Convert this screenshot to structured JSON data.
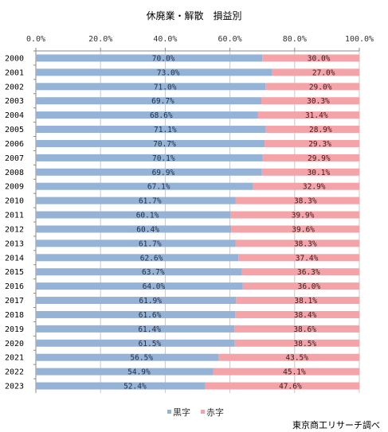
{
  "chart_data": {
    "type": "bar",
    "orientation": "horizontal",
    "stacked": "percent",
    "title": "休廃業・解散　損益別",
    "categories": [
      "2000",
      "2001",
      "2002",
      "2003",
      "2004",
      "2005",
      "2006",
      "2007",
      "2008",
      "2009",
      "2010",
      "2011",
      "2012",
      "2013",
      "2014",
      "2015",
      "2016",
      "2017",
      "2018",
      "2019",
      "2020",
      "2021",
      "2022",
      "2023"
    ],
    "series": [
      {
        "name": "黒字",
        "color": "#95b3d7",
        "values": [
          70.0,
          73.0,
          71.0,
          69.7,
          68.6,
          71.1,
          70.7,
          70.1,
          69.9,
          67.1,
          61.7,
          60.1,
          60.4,
          61.7,
          62.6,
          63.7,
          64.0,
          61.9,
          61.6,
          61.4,
          61.5,
          56.5,
          54.9,
          52.4
        ],
        "labels": [
          "70.0%",
          "73.0%",
          "71.0%",
          "69.7%",
          "68.6%",
          "71.1%",
          "70.7%",
          "70.1%",
          "69.9%",
          "67.1%",
          "61.7%",
          "60.1%",
          "60.4%",
          "61.7%",
          "62.6%",
          "63.7%",
          "64.0%",
          "61.9%",
          "61.6%",
          "61.4%",
          "61.5%",
          "56.5%",
          "54.9%",
          "52.4%"
        ]
      },
      {
        "name": "赤字",
        "color": "#f4a3a8",
        "values": [
          30.0,
          27.0,
          29.0,
          30.3,
          31.4,
          28.9,
          29.3,
          29.9,
          30.1,
          32.9,
          38.3,
          39.9,
          39.6,
          38.3,
          37.4,
          36.3,
          36.0,
          38.1,
          38.4,
          38.6,
          38.5,
          43.5,
          45.1,
          47.6
        ],
        "labels": [
          "30.0%",
          "27.0%",
          "29.0%",
          "30.3%",
          "31.4%",
          "28.9%",
          "29.3%",
          "29.9%",
          "30.1%",
          "32.9%",
          "38.3%",
          "39.9%",
          "39.6%",
          "38.3%",
          "37.4%",
          "36.3%",
          "36.0%",
          "38.1%",
          "38.4%",
          "38.6%",
          "38.5%",
          "43.5%",
          "45.1%",
          "47.6%"
        ]
      }
    ],
    "xlim": [
      0,
      100
    ],
    "x_ticks": [
      0,
      20,
      40,
      60,
      80,
      100
    ],
    "x_tick_labels": [
      "0.0%",
      "20.0%",
      "40.0%",
      "60.0%",
      "80.0%",
      "100.0%"
    ],
    "x_axis_position": "top",
    "grid": true,
    "legend": "bottom"
  },
  "source_note": "東京商工リサーチ調べ"
}
